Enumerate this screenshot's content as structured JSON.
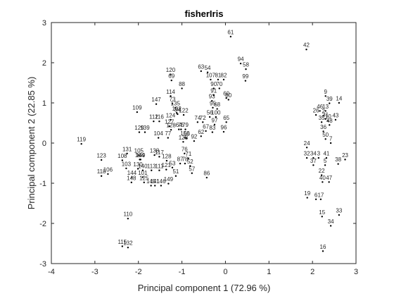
{
  "chart_data": {
    "type": "scatter",
    "title": "fisherIris",
    "xlabel": "Principal component 1 (72.96 %)",
    "ylabel": "Principal component 2 (22.85 %)",
    "xlim": [
      -4,
      3
    ],
    "ylim": [
      -3,
      3
    ],
    "xticks": [
      -4,
      -3,
      -2,
      -1,
      0,
      1,
      2,
      3
    ],
    "yticks": [
      -3,
      -2,
      -1,
      0,
      1,
      2,
      3
    ],
    "grid": false,
    "points": [
      {
        "label": "61",
        "x": 0.12,
        "y": 2.65
      },
      {
        "label": "42",
        "x": 1.86,
        "y": 2.33
      },
      {
        "label": "94",
        "x": 0.35,
        "y": 1.98
      },
      {
        "label": "58",
        "x": 0.47,
        "y": 1.84
      },
      {
        "label": "63",
        "x": -0.56,
        "y": 1.79
      },
      {
        "label": "54",
        "x": -0.41,
        "y": 1.76
      },
      {
        "label": "107",
        "x": -0.34,
        "y": 1.58
      },
      {
        "label": "81",
        "x": -0.17,
        "y": 1.58
      },
      {
        "label": "82",
        "x": -0.04,
        "y": 1.58
      },
      {
        "label": "99",
        "x": 0.46,
        "y": 1.55
      },
      {
        "label": "120",
        "x": -1.26,
        "y": 1.71
      },
      {
        "label": "69",
        "x": -1.24,
        "y": 1.56
      },
      {
        "label": "88",
        "x": -1.0,
        "y": 1.36
      },
      {
        "label": "90",
        "x": -0.27,
        "y": 1.36
      },
      {
        "label": "70",
        "x": -0.14,
        "y": 1.36
      },
      {
        "label": "114",
        "x": -1.26,
        "y": 1.17
      },
      {
        "label": "91",
        "x": -0.27,
        "y": 1.19
      },
      {
        "label": "9",
        "x": 2.3,
        "y": 1.17
      },
      {
        "label": "93",
        "x": -0.31,
        "y": 1.05
      },
      {
        "label": "60",
        "x": 0.02,
        "y": 1.12
      },
      {
        "label": "80",
        "x": 0.07,
        "y": 1.08
      },
      {
        "label": "39",
        "x": 2.39,
        "y": 0.99
      },
      {
        "label": "14",
        "x": 2.61,
        "y": 1.0
      },
      {
        "label": "73",
        "x": -1.22,
        "y": 0.98
      },
      {
        "label": "147",
        "x": -1.59,
        "y": 0.97
      },
      {
        "label": "95",
        "x": -0.29,
        "y": 0.88
      },
      {
        "label": "68",
        "x": -0.19,
        "y": 0.85
      },
      {
        "label": "135",
        "x": -1.15,
        "y": 0.88
      },
      {
        "label": "109",
        "x": -2.03,
        "y": 0.77
      },
      {
        "label": "102",
        "x": -1.12,
        "y": 0.75
      },
      {
        "label": "84",
        "x": -1.1,
        "y": 0.72
      },
      {
        "label": "122",
        "x": -0.96,
        "y": 0.7
      },
      {
        "label": "46",
        "x": 2.17,
        "y": 0.8
      },
      {
        "label": "13",
        "x": 2.3,
        "y": 0.8
      },
      {
        "label": "26",
        "x": 2.08,
        "y": 0.7
      },
      {
        "label": "2",
        "x": 2.25,
        "y": 0.68
      },
      {
        "label": "31",
        "x": 2.3,
        "y": 0.6
      },
      {
        "label": "10",
        "x": 2.36,
        "y": 0.55
      },
      {
        "label": "35",
        "x": 2.21,
        "y": 0.52
      },
      {
        "label": "48",
        "x": 2.39,
        "y": 0.45
      },
      {
        "label": "43",
        "x": 2.53,
        "y": 0.58
      },
      {
        "label": "56",
        "x": -0.36,
        "y": 0.65
      },
      {
        "label": "100",
        "x": -0.22,
        "y": 0.65
      },
      {
        "label": "65",
        "x": 0.02,
        "y": 0.52
      },
      {
        "label": "112",
        "x": -1.65,
        "y": 0.54
      },
      {
        "label": "116",
        "x": -1.52,
        "y": 0.54
      },
      {
        "label": "124",
        "x": -1.26,
        "y": 0.58
      },
      {
        "label": "127",
        "x": -1.29,
        "y": 0.42
      },
      {
        "label": "74",
        "x": -0.64,
        "y": 0.52
      },
      {
        "label": "72",
        "x": -0.52,
        "y": 0.52
      },
      {
        "label": "97",
        "x": -0.25,
        "y": 0.46
      },
      {
        "label": "36",
        "x": 2.25,
        "y": 0.29
      },
      {
        "label": "64",
        "x": -1.07,
        "y": 0.34
      },
      {
        "label": "75",
        "x": -1.02,
        "y": 0.34
      },
      {
        "label": "79",
        "x": -0.92,
        "y": 0.34
      },
      {
        "label": "67",
        "x": -0.45,
        "y": 0.3
      },
      {
        "label": "83",
        "x": -0.3,
        "y": 0.27
      },
      {
        "label": "96",
        "x": -0.04,
        "y": 0.28
      },
      {
        "label": "129",
        "x": -1.98,
        "y": 0.27
      },
      {
        "label": "139",
        "x": -1.85,
        "y": 0.27
      },
      {
        "label": "128",
        "x": -1.25,
        "y": 0.33
      },
      {
        "label": "62",
        "x": -0.56,
        "y": 0.17
      },
      {
        "label": "104",
        "x": -1.54,
        "y": 0.13
      },
      {
        "label": "77",
        "x": -1.32,
        "y": 0.13
      },
      {
        "label": "150",
        "x": -0.93,
        "y": 0.13
      },
      {
        "label": "66",
        "x": -0.89,
        "y": 0.12
      },
      {
        "label": "92",
        "x": -0.72,
        "y": 0.05
      },
      {
        "label": "50",
        "x": 2.3,
        "y": 0.1
      },
      {
        "label": "7",
        "x": 2.42,
        "y": 0.0
      },
      {
        "label": "128",
        "x": -0.97,
        "y": 0.03
      },
      {
        "label": "24",
        "x": 1.87,
        "y": -0.11
      },
      {
        "label": "119",
        "x": -3.31,
        "y": -0.02
      },
      {
        "label": "123",
        "x": -2.85,
        "y": -0.42
      },
      {
        "label": "131",
        "x": -2.26,
        "y": -0.26
      },
      {
        "label": "108",
        "x": -2.37,
        "y": -0.43
      },
      {
        "label": "105",
        "x": -1.99,
        "y": -0.3
      },
      {
        "label": "138",
        "x": -1.63,
        "y": -0.3
      },
      {
        "label": "117",
        "x": -1.52,
        "y": -0.34
      },
      {
        "label": "149",
        "x": -1.95,
        "y": -0.41
      },
      {
        "label": "134",
        "x": -1.97,
        "y": -0.41
      },
      {
        "label": "76",
        "x": -0.94,
        "y": -0.26
      },
      {
        "label": "71",
        "x": -0.85,
        "y": -0.38
      },
      {
        "label": "128",
        "x": -1.35,
        "y": -0.44
      },
      {
        "label": "87",
        "x": -1.04,
        "y": -0.51
      },
      {
        "label": "78",
        "x": -0.93,
        "y": -0.51
      },
      {
        "label": "52",
        "x": -0.81,
        "y": -0.57
      },
      {
        "label": "53",
        "x": -1.22,
        "y": -0.61
      },
      {
        "label": "103",
        "x": -2.28,
        "y": -0.63
      },
      {
        "label": "130",
        "x": -2.01,
        "y": -0.64
      },
      {
        "label": "140",
        "x": -1.9,
        "y": -0.68
      },
      {
        "label": "113",
        "x": -1.7,
        "y": -0.68
      },
      {
        "label": "111",
        "x": -1.52,
        "y": -0.68
      },
      {
        "label": "121",
        "x": -1.36,
        "y": -0.66
      },
      {
        "label": "57",
        "x": -0.77,
        "y": -0.75
      },
      {
        "label": "51",
        "x": -1.14,
        "y": -0.82
      },
      {
        "label": "86",
        "x": -0.43,
        "y": -0.86
      },
      {
        "label": "106",
        "x": -2.7,
        "y": -0.77
      },
      {
        "label": "118",
        "x": -2.85,
        "y": -0.82
      },
      {
        "label": "144",
        "x": -2.15,
        "y": -0.85
      },
      {
        "label": "101",
        "x": -1.9,
        "y": -0.85
      },
      {
        "label": "148",
        "x": -2.16,
        "y": -0.98
      },
      {
        "label": "125",
        "x": -1.87,
        "y": -0.98
      },
      {
        "label": "145",
        "x": -1.71,
        "y": -1.06
      },
      {
        "label": "141",
        "x": -1.62,
        "y": -1.06
      },
      {
        "label": "146",
        "x": -1.48,
        "y": -1.06
      },
      {
        "label": "149",
        "x": -1.31,
        "y": -1.01
      },
      {
        "label": "32",
        "x": 1.87,
        "y": -0.37
      },
      {
        "label": "34",
        "x": 2.02,
        "y": -0.37
      },
      {
        "label": "3",
        "x": 2.14,
        "y": -0.37
      },
      {
        "label": "41",
        "x": 2.32,
        "y": -0.37
      },
      {
        "label": "37",
        "x": 2.02,
        "y": -0.55
      },
      {
        "label": "5",
        "x": 2.29,
        "y": -0.55
      },
      {
        "label": "38",
        "x": 2.59,
        "y": -0.52
      },
      {
        "label": "23",
        "x": 2.75,
        "y": -0.41
      },
      {
        "label": "22",
        "x": 2.21,
        "y": -0.8
      },
      {
        "label": "40",
        "x": 2.23,
        "y": -0.97
      },
      {
        "label": "47",
        "x": 2.38,
        "y": -0.97
      },
      {
        "label": "19",
        "x": 1.88,
        "y": -1.36
      },
      {
        "label": "6",
        "x": 2.08,
        "y": -1.4
      },
      {
        "label": "17",
        "x": 2.19,
        "y": -1.4
      },
      {
        "label": "15",
        "x": 2.22,
        "y": -1.83
      },
      {
        "label": "33",
        "x": 2.61,
        "y": -1.79
      },
      {
        "label": "34",
        "x": 2.42,
        "y": -2.06
      },
      {
        "label": "110",
        "x": -2.24,
        "y": -1.88
      },
      {
        "label": "115",
        "x": -2.37,
        "y": -2.57
      },
      {
        "label": "132",
        "x": -2.24,
        "y": -2.6
      },
      {
        "label": "16",
        "x": 2.24,
        "y": -2.69
      }
    ]
  }
}
